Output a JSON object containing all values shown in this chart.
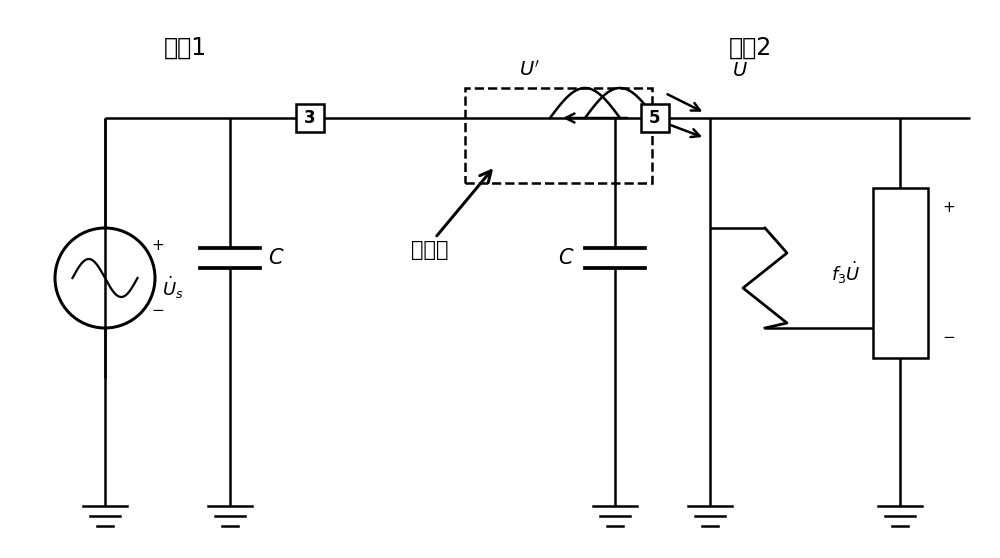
{
  "bg_color": "#ffffff",
  "line_color": "#000000",
  "lw": 1.8,
  "fig_width": 10.0,
  "fig_height": 5.58,
  "label_bus1": "母线1",
  "label_bus2": "母线2",
  "label_dengxiaodian": "等效点",
  "label_C": "C",
  "node3_label": "3",
  "node5_label": "5"
}
